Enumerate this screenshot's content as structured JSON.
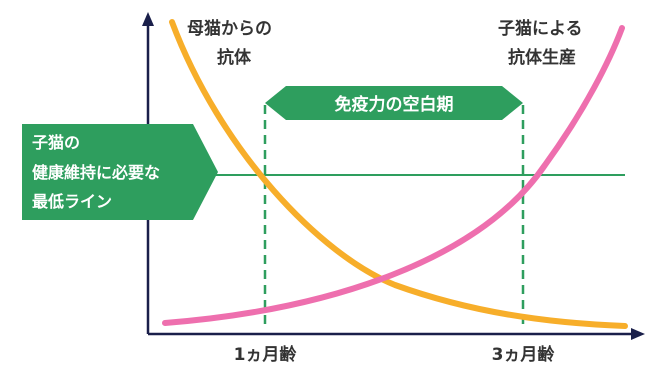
{
  "labels": {
    "maternal_antibody": [
      "母猫からの",
      "抗体"
    ],
    "kitten_antibody": [
      "子猫による",
      "抗体生産"
    ],
    "immunity_gap": "免疫力の空白期",
    "minimum_line": [
      "子猫の",
      "健康維持に必要な",
      "最低ライン"
    ],
    "x_ticks": [
      "1ヵ月齢",
      "3ヵ月齢"
    ]
  },
  "colors": {
    "maternal_curve": "#F7AE2A",
    "kitten_curve": "#EE6FAE",
    "green": "#2E9E5E",
    "axis": "#1a1f4a",
    "text": "#333333"
  }
}
